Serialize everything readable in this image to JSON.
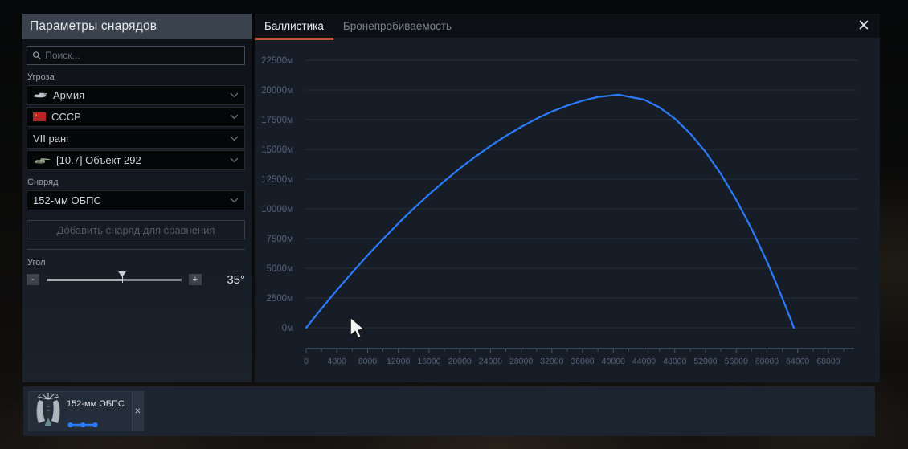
{
  "window": {
    "title": "Параметры снарядов",
    "close_glyph": "✕"
  },
  "sidebar": {
    "search": {
      "placeholder": "Поиск..."
    },
    "threat_label": "Угроза",
    "filters": [
      {
        "icon": "tank-icon",
        "label": "Армия"
      },
      {
        "icon": "ussr-flag-icon",
        "label": "СССР"
      },
      {
        "icon": "none",
        "label": "VII ранг"
      },
      {
        "icon": "vehicle-icon",
        "label": "[10.7] Объект 292"
      }
    ],
    "shell_label": "Снаряд",
    "shell_value": "152-мм ОБПС",
    "compare_button": "Добавить снаряд для сравнения",
    "angle": {
      "label": "Угол",
      "minus": "-",
      "plus": "+",
      "value": "35°",
      "percent": 56
    }
  },
  "tabs": [
    {
      "label": "Баллистика",
      "active": true
    },
    {
      "label": "Бронепробиваемость",
      "active": false
    }
  ],
  "chart_data": {
    "type": "line",
    "title": "",
    "xlabel": "",
    "ylabel": "",
    "grid": true,
    "legend_position": "none",
    "x": {
      "min": 0,
      "max": 70000,
      "tick_step": 4000,
      "minor_step": 2000,
      "tick_labels": [
        "0",
        "4000",
        "8000",
        "12000",
        "16000",
        "20000",
        "24000",
        "28000",
        "32000",
        "36000",
        "40000",
        "44000",
        "48000",
        "52000",
        "56000",
        "60000",
        "64000",
        "68000"
      ]
    },
    "y": {
      "min": 0,
      "max": 22500,
      "tick_step": 2500,
      "unit": "м",
      "tick_labels": [
        "0м",
        "2500м",
        "5000м",
        "7500м",
        "10000м",
        "12500м",
        "15000м",
        "17500м",
        "20000м",
        "22500м"
      ]
    },
    "series": [
      {
        "name": "152-мм ОБПС",
        "color": "#2b7bff",
        "points": [
          [
            0,
            0
          ],
          [
            2000,
            1610
          ],
          [
            4000,
            3160
          ],
          [
            6000,
            4650
          ],
          [
            8000,
            6090
          ],
          [
            10000,
            7460
          ],
          [
            12000,
            8780
          ],
          [
            14000,
            10030
          ],
          [
            16000,
            11210
          ],
          [
            18000,
            12330
          ],
          [
            20000,
            13390
          ],
          [
            22000,
            14370
          ],
          [
            24000,
            15290
          ],
          [
            26000,
            16130
          ],
          [
            28000,
            16890
          ],
          [
            30000,
            17580
          ],
          [
            32000,
            18180
          ],
          [
            34000,
            18690
          ],
          [
            36000,
            19100
          ],
          [
            38000,
            19410
          ],
          [
            40700,
            19600
          ],
          [
            44000,
            19190
          ],
          [
            46000,
            18540
          ],
          [
            48000,
            17590
          ],
          [
            50000,
            16340
          ],
          [
            52000,
            14790
          ],
          [
            54000,
            12930
          ],
          [
            56000,
            10770
          ],
          [
            58000,
            8320
          ],
          [
            60000,
            5560
          ],
          [
            61000,
            4060
          ],
          [
            62000,
            2500
          ],
          [
            63000,
            850
          ],
          [
            63500,
            0
          ]
        ]
      }
    ]
  },
  "bottom_bar": {
    "items": [
      {
        "label": "152-мм ОБПС",
        "icon": "apfsds-shell-icon",
        "line_color": "#2b7bff",
        "remove_glyph": "✕"
      }
    ]
  },
  "colors": {
    "accent_blue": "#2b7bff",
    "tab_underline": "#c8502e",
    "grid_line": "#232e3b",
    "axis": "#46586c",
    "tick_label": "#54647a"
  }
}
